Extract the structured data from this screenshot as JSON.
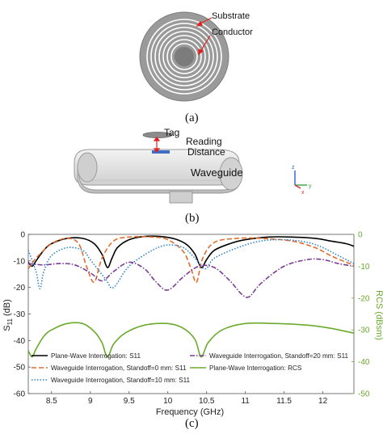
{
  "figure": {
    "panel_a_label": "(a)",
    "panel_b_label": "(b)",
    "panel_c_label": "(c)",
    "panel_a_annotations": {
      "substrate": "Substrate",
      "conductor": "Conductor"
    },
    "panel_b_annotations": {
      "tag": "Tag",
      "reading": "Reading",
      "distance": "Distance",
      "waveguide": "Waveguide"
    },
    "axis_triad": {
      "z": "z",
      "y": "y",
      "x": "x"
    },
    "colors": {
      "red_arrow": "#e02020",
      "substrate": "#8f8f8f",
      "conductor": "#ffffff",
      "waveguide": "#d6d6d6"
    }
  },
  "chart_data": {
    "type": "line",
    "title": "",
    "xlabel": "Frequency (GHz)",
    "ylabel": "S11 (dB)",
    "ylabel_right": "RCS (dBsm)",
    "xlim": [
      8.2,
      12.4
    ],
    "ylim": [
      -60,
      0
    ],
    "ylim_right": [
      -50,
      0
    ],
    "xticks": [
      "8.5",
      "9",
      "9.5",
      "10",
      "10.5",
      "11",
      "11.5",
      "12"
    ],
    "yticks": [
      "0",
      "-10",
      "-20",
      "-30",
      "-40",
      "-50",
      "-60"
    ],
    "yticks_right": [
      "0",
      "-10",
      "-20",
      "-30",
      "-40",
      "-50"
    ],
    "legend_placement": "bottom, inside axes, 2 columns",
    "series": [
      {
        "name": "Plane-Wave Interrogation: S11",
        "axis": "left",
        "color": "#000000",
        "dash": "solid",
        "x": [
          8.2,
          8.25,
          8.3,
          8.4,
          8.5,
          8.7,
          8.9,
          9.05,
          9.15,
          9.22,
          9.28,
          9.35,
          9.5,
          9.7,
          9.9,
          10.1,
          10.25,
          10.35,
          10.43,
          10.5,
          10.6,
          10.8,
          11.0,
          11.3,
          11.6,
          11.9,
          12.1,
          12.3,
          12.4
        ],
        "y": [
          -10.5,
          -12.0,
          -10.0,
          -6.0,
          -3.5,
          -1.5,
          -1.5,
          -3.5,
          -7.5,
          -12.5,
          -9.0,
          -5.0,
          -2.0,
          -0.8,
          -0.8,
          -1.8,
          -4.0,
          -7.5,
          -12.5,
          -9.5,
          -6.0,
          -3.5,
          -2.0,
          -1.0,
          -1.0,
          -1.5,
          -2.5,
          -3.5,
          -4.5
        ]
      },
      {
        "name": "Waveguide Interrogation, Standoff=0 mm: S11",
        "axis": "left",
        "color": "#e36c2b",
        "dash": "dash",
        "x": [
          8.2,
          8.3,
          8.5,
          8.7,
          8.85,
          8.95,
          9.05,
          9.15,
          9.3,
          9.5,
          9.8,
          10.0,
          10.2,
          10.3,
          10.37,
          10.45,
          10.6,
          10.9,
          11.2,
          11.6,
          11.9,
          12.1,
          12.3,
          12.4
        ],
        "y": [
          -13.0,
          -9.0,
          -3.5,
          -1.5,
          -3.5,
          -12.0,
          -18.0,
          -9.0,
          -2.5,
          -1.0,
          -1.0,
          -2.0,
          -6.5,
          -13.0,
          -18.0,
          -9.0,
          -3.0,
          -1.5,
          -1.5,
          -2.5,
          -5.0,
          -8.0,
          -10.5,
          -11.5
        ]
      },
      {
        "name": "Waveguide Interrogation, Standoff=10 mm: S11",
        "axis": "left",
        "color": "#2e86c9",
        "dash": "dot",
        "x": [
          8.2,
          8.3,
          8.35,
          8.4,
          8.5,
          8.7,
          8.9,
          9.0,
          9.2,
          9.3,
          9.5,
          9.8,
          10.0,
          10.2,
          10.35,
          10.48,
          10.6,
          10.9,
          11.2,
          11.5,
          11.8,
          12.0,
          12.2,
          12.4
        ],
        "y": [
          -6.0,
          -14.0,
          -20.5,
          -14.0,
          -8.0,
          -5.0,
          -6.0,
          -9.5,
          -17.0,
          -20.0,
          -12.0,
          -6.0,
          -4.0,
          -5.0,
          -9.0,
          -13.0,
          -9.0,
          -5.0,
          -2.5,
          -2.0,
          -3.0,
          -5.0,
          -8.0,
          -11.0
        ]
      },
      {
        "name": "Waveguide Interrogation, Standoff=20 mm: S11",
        "axis": "left",
        "color": "#7a3c96",
        "dash": "dashdot",
        "x": [
          8.2,
          8.4,
          8.6,
          8.8,
          9.0,
          9.15,
          9.3,
          9.5,
          9.7,
          9.85,
          10.0,
          10.2,
          10.4,
          10.6,
          10.8,
          10.95,
          11.05,
          11.2,
          11.5,
          11.8,
          12.0,
          12.2,
          12.4
        ],
        "y": [
          -11.0,
          -11.5,
          -11.0,
          -11.5,
          -14.5,
          -17.5,
          -14.0,
          -10.5,
          -13.0,
          -18.0,
          -21.0,
          -16.0,
          -12.0,
          -12.5,
          -17.5,
          -22.5,
          -23.5,
          -18.5,
          -12.0,
          -9.5,
          -9.5,
          -11.0,
          -12.0
        ]
      },
      {
        "name": "Plane-Wave Interrogation: RCS",
        "axis": "right",
        "color": "#6aaa2c",
        "dash": "solid",
        "x": [
          8.2,
          8.25,
          8.3,
          8.4,
          8.5,
          8.7,
          8.9,
          9.05,
          9.15,
          9.22,
          9.3,
          9.45,
          9.7,
          10.0,
          10.2,
          10.35,
          10.43,
          10.52,
          10.7,
          11.0,
          11.4,
          11.8,
          12.1,
          12.4
        ],
        "y": [
          -36.5,
          -38.5,
          -36.0,
          -32.0,
          -30.0,
          -28.0,
          -28.0,
          -30.5,
          -34.0,
          -38.5,
          -34.5,
          -31.0,
          -28.5,
          -28.0,
          -29.5,
          -33.0,
          -38.5,
          -34.0,
          -30.0,
          -28.0,
          -28.0,
          -28.5,
          -29.5,
          -31.0
        ]
      }
    ]
  }
}
